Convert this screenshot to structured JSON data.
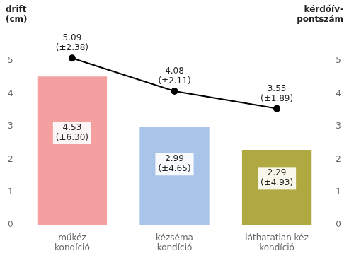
{
  "chart_data": {
    "type": "bar",
    "categories": [
      "műkéz\nkondíció",
      "kézséma\nkondíció",
      "láthatatlan kéz\nkondíció"
    ],
    "series": [
      {
        "type": "bar",
        "colors": [
          "#F4A0A0",
          "#A8C4E8",
          "#B0A840"
        ],
        "values": [
          4.53,
          2.99,
          2.29
        ],
        "value_labels": [
          "4.53\n(±6.30)",
          "2.99\n(±4.65)",
          "2.29\n(±4.93)"
        ]
      },
      {
        "type": "line",
        "axis": "y2",
        "color": "#000000",
        "marker": "circle",
        "values": [
          5.09,
          4.08,
          3.55
        ],
        "value_labels": [
          "5.09\n(±2.38)",
          "4.08\n(±2.11)",
          "3.55\n(±1.89)"
        ]
      }
    ],
    "ylabel": "drift\n(cm)",
    "y2label": "kérdőív-\npontszám",
    "ylim": [
      0,
      6
    ],
    "yticks": [
      0,
      1,
      2,
      3,
      4,
      5
    ],
    "y2lim": [
      0,
      6
    ],
    "y2ticks": [
      0,
      1,
      2,
      3,
      4,
      5
    ],
    "grid": false,
    "data_labels": true
  }
}
